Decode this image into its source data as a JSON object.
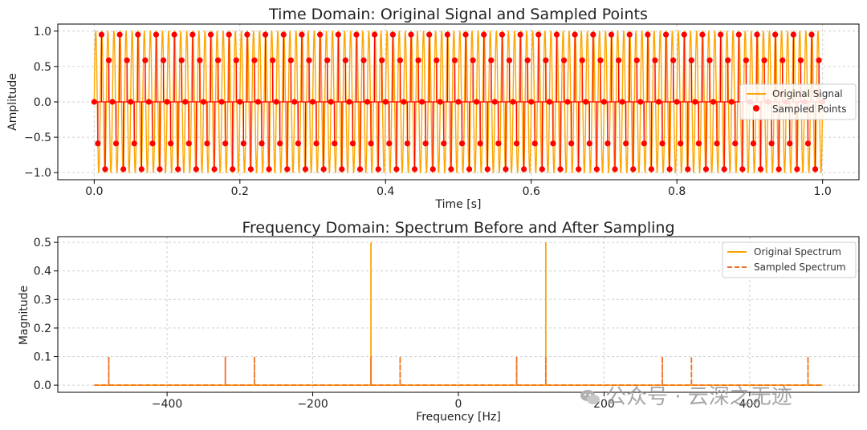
{
  "chart_data": [
    {
      "type": "line",
      "title": "Time Domain: Original Signal and Sampled Points",
      "xlabel": "Time [s]",
      "ylabel": "Amplitude",
      "xlim": [
        -0.05,
        1.05
      ],
      "ylim": [
        -1.1,
        1.1
      ],
      "x_ticks": [
        0.0,
        0.2,
        0.4,
        0.6,
        0.8,
        1.0
      ],
      "x_tick_labels": [
        "0.0",
        "0.2",
        "0.4",
        "0.6",
        "0.8",
        "1.0"
      ],
      "y_ticks": [
        -1.0,
        -0.5,
        0.0,
        0.5,
        1.0
      ],
      "y_tick_labels": [
        "−1.0",
        "−0.5",
        "0.0",
        "0.5",
        "1.0"
      ],
      "grid": true,
      "legend_position": "right",
      "series": [
        {
          "name": "Original Signal",
          "style": "line",
          "color": "#FFA500",
          "frequency_hz": 120,
          "amplitude": 1.0,
          "duration_s": 1.0
        },
        {
          "name": "Sampled Points",
          "style": "stem",
          "color": "#FF0000",
          "marker": "circle",
          "sample_rate_hz": 200,
          "sample_count": 201,
          "start_s": 0.0,
          "value_cycle": [
            0.0,
            -0.588,
            0.951,
            -0.951,
            0.588
          ]
        }
      ]
    },
    {
      "type": "line",
      "title": "Frequency Domain: Spectrum Before and After Sampling",
      "xlabel": "Frequency [Hz]",
      "ylabel": "Magnitude",
      "xlim": [
        -550,
        550
      ],
      "ylim": [
        -0.025,
        0.52
      ],
      "x_ticks": [
        -400,
        -200,
        0,
        200,
        400
      ],
      "x_tick_labels": [
        "−400",
        "−200",
        "0",
        "200",
        "400"
      ],
      "y_ticks": [
        0.0,
        0.1,
        0.2,
        0.3,
        0.4,
        0.5
      ],
      "y_tick_labels": [
        "0.0",
        "0.1",
        "0.2",
        "0.3",
        "0.4",
        "0.5"
      ],
      "grid": true,
      "legend_position": "top-right",
      "series": [
        {
          "name": "Original Spectrum",
          "style": "solid",
          "color": "#FFA500",
          "x_range": [
            -500,
            500
          ],
          "baseline": 0.0,
          "peaks": [
            {
              "x": -120,
              "y": 0.5
            },
            {
              "x": 120,
              "y": 0.5
            }
          ]
        },
        {
          "name": "Sampled Spectrum",
          "style": "dashed",
          "color": "#F07020",
          "x_range": [
            -500,
            500
          ],
          "baseline": 0.0,
          "peaks": [
            {
              "x": -480,
              "y": 0.1
            },
            {
              "x": -320,
              "y": 0.1
            },
            {
              "x": -280,
              "y": 0.1
            },
            {
              "x": -120,
              "y": 0.1
            },
            {
              "x": -80,
              "y": 0.1
            },
            {
              "x": 80,
              "y": 0.1
            },
            {
              "x": 120,
              "y": 0.1
            },
            {
              "x": 280,
              "y": 0.1
            },
            {
              "x": 320,
              "y": 0.1
            },
            {
              "x": 480,
              "y": 0.1
            }
          ]
        }
      ]
    }
  ],
  "watermark": {
    "text": "公众号 · 云深之无迹",
    "icon": "wechat-icon"
  }
}
